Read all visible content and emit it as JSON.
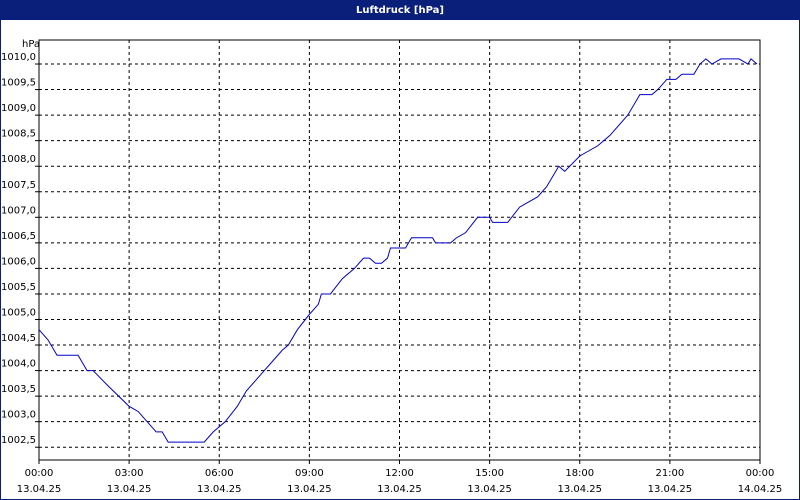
{
  "chart_data": {
    "type": "line",
    "title": "Luftdruck [hPa]",
    "y_label": "hPa",
    "x": [
      0,
      0.3,
      0.6,
      1.3,
      1.6,
      1.8,
      2.3,
      3.0,
      3.3,
      3.6,
      3.9,
      4.1,
      4.3,
      5.5,
      5.8,
      6.2,
      6.6,
      6.9,
      7.2,
      7.5,
      7.8,
      8.1,
      8.3,
      8.6,
      9.0,
      9.3,
      9.4,
      9.7,
      10.1,
      10.5,
      10.8,
      11.0,
      11.2,
      11.4,
      11.6,
      11.7,
      12.2,
      12.4,
      13.1,
      13.2,
      13.7,
      13.9,
      14.2,
      14.6,
      15.0,
      15.1,
      15.6,
      16.0,
      16.3,
      16.6,
      16.9,
      17.3,
      17.5,
      18.0,
      18.3,
      18.6,
      19.0,
      19.6,
      20.0,
      20.4,
      20.6,
      20.9,
      21.2,
      21.4,
      21.8,
      22.0,
      22.2,
      22.4,
      22.7,
      23.3,
      23.6,
      23.7,
      23.9
    ],
    "series": [
      {
        "name": "Luftdruck",
        "color": "#0000c8",
        "values": [
          1004.8,
          1004.6,
          1004.3,
          1004.3,
          1004.0,
          1004.0,
          1003.7,
          1003.3,
          1003.2,
          1003.0,
          1002.8,
          1002.8,
          1002.6,
          1002.6,
          1002.8,
          1003.0,
          1003.3,
          1003.6,
          1003.8,
          1004.0,
          1004.2,
          1004.4,
          1004.5,
          1004.8,
          1005.1,
          1005.3,
          1005.5,
          1005.5,
          1005.8,
          1006.0,
          1006.2,
          1006.2,
          1006.1,
          1006.1,
          1006.2,
          1006.4,
          1006.4,
          1006.6,
          1006.6,
          1006.5,
          1006.5,
          1006.6,
          1006.7,
          1007.0,
          1007.0,
          1006.9,
          1006.9,
          1007.2,
          1007.3,
          1007.4,
          1007.6,
          1008.0,
          1007.9,
          1008.2,
          1008.3,
          1008.4,
          1008.6,
          1009.0,
          1009.4,
          1009.4,
          1009.5,
          1009.7,
          1009.7,
          1009.8,
          1009.8,
          1010.0,
          1010.1,
          1010.0,
          1010.1,
          1010.1,
          1010.0,
          1010.1,
          1010.0
        ]
      }
    ],
    "xlim": [
      0,
      24
    ],
    "xticks": [
      {
        "value": 0,
        "label": "00:00"
      },
      {
        "value": 3,
        "label": "03:00"
      },
      {
        "value": 6,
        "label": "06:00"
      },
      {
        "value": 9,
        "label": "09:00"
      },
      {
        "value": 12,
        "label": "12:00"
      },
      {
        "value": 15,
        "label": "15:00"
      },
      {
        "value": 18,
        "label": "18:00"
      },
      {
        "value": 21,
        "label": "21:00"
      },
      {
        "value": 24,
        "label": "00:00"
      }
    ],
    "xtick_dates": [
      "13.04.25",
      "13.04.25",
      "13.04.25",
      "13.04.25",
      "13.04.25",
      "13.04.25",
      "13.04.25",
      "13.04.25",
      "14.04.25"
    ],
    "ylim": [
      1002.25,
      1010.47
    ],
    "yticks": [
      {
        "value": 1002.5,
        "label": "1002,5"
      },
      {
        "value": 1003,
        "label": "1003,0"
      },
      {
        "value": 1003.5,
        "label": "1003,5"
      },
      {
        "value": 1004,
        "label": "1004,0"
      },
      {
        "value": 1004.5,
        "label": "1004,5"
      },
      {
        "value": 1005,
        "label": "1005,0"
      },
      {
        "value": 1005.5,
        "label": "1005,5"
      },
      {
        "value": 1006,
        "label": "1006,0"
      },
      {
        "value": 1006.5,
        "label": "1006,5"
      },
      {
        "value": 1007,
        "label": "1007,0"
      },
      {
        "value": 1007.5,
        "label": "1007,5"
      },
      {
        "value": 1008,
        "label": "1008,0"
      },
      {
        "value": 1008.5,
        "label": "1008,5"
      },
      {
        "value": 1009,
        "label": "1009,0"
      },
      {
        "value": 1009.5,
        "label": "1009,5"
      },
      {
        "value": 1010,
        "label": "1010,0"
      }
    ],
    "grid": true
  }
}
